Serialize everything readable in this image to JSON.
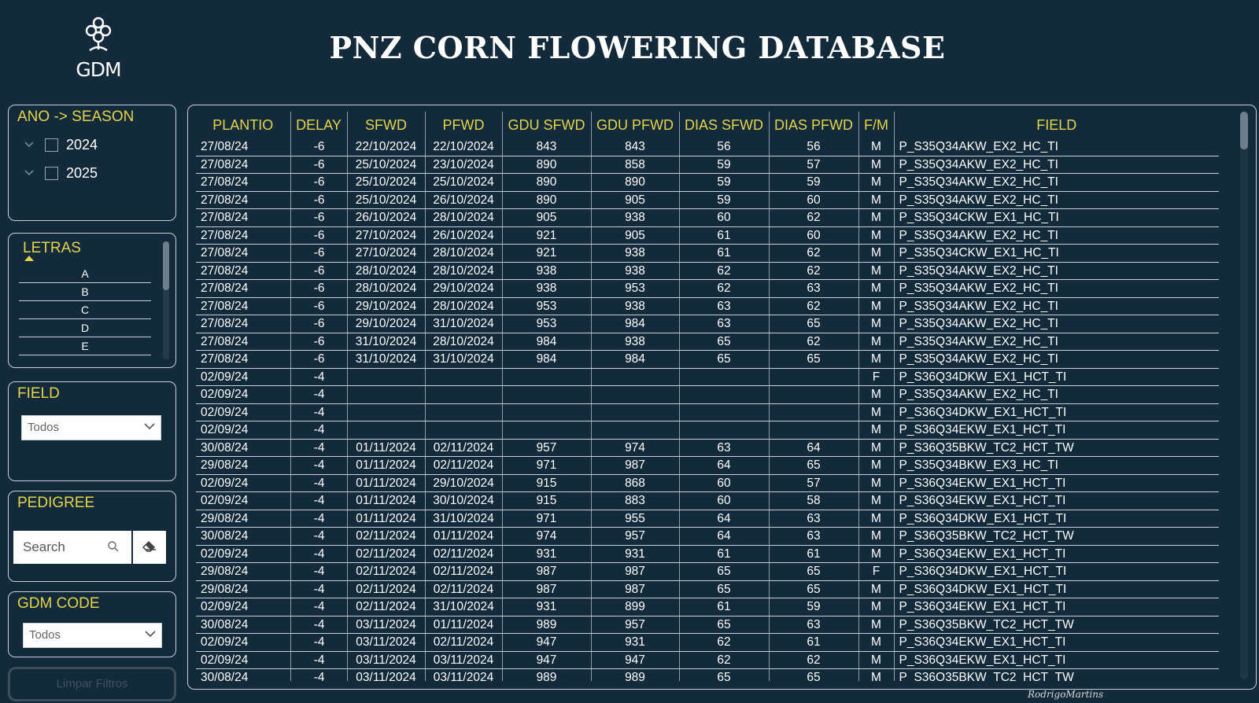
{
  "header": {
    "title": "PNZ CORN FLOWERING DATABASE",
    "logo_text": "GDM"
  },
  "season_filter": {
    "title": "ANO -> SEASON",
    "items": [
      {
        "label": "2024",
        "checked": false
      },
      {
        "label": "2025",
        "checked": false
      }
    ]
  },
  "letras_filter": {
    "title": "LETRAS",
    "items": [
      "A",
      "B",
      "C",
      "D",
      "E"
    ]
  },
  "field_filter": {
    "title": "FIELD",
    "selected": "Todos"
  },
  "pedigree_filter": {
    "title": "PEDIGREE",
    "placeholder": "Search"
  },
  "gdm_code_filter": {
    "title": "GDM CODE",
    "selected": "Todos"
  },
  "clear_button": {
    "label": "Limpar Filtros"
  },
  "table": {
    "columns": [
      "PLANTIO",
      "DELAY",
      "SFWD",
      "PFWD",
      "GDU SFWD",
      "GDU PFWD",
      "DIAS SFWD",
      "DIAS PFWD",
      "F/M",
      "FIELD"
    ],
    "rows": [
      [
        "27/08/24",
        "-6",
        "22/10/2024",
        "22/10/2024",
        "843",
        "843",
        "56",
        "56",
        "M",
        "P_S35Q34AKW_EX2_HC_TI"
      ],
      [
        "27/08/24",
        "-6",
        "25/10/2024",
        "23/10/2024",
        "890",
        "858",
        "59",
        "57",
        "M",
        "P_S35Q34AKW_EX2_HC_TI"
      ],
      [
        "27/08/24",
        "-6",
        "25/10/2024",
        "25/10/2024",
        "890",
        "890",
        "59",
        "59",
        "M",
        "P_S35Q34AKW_EX2_HC_TI"
      ],
      [
        "27/08/24",
        "-6",
        "25/10/2024",
        "26/10/2024",
        "890",
        "905",
        "59",
        "60",
        "M",
        "P_S35Q34AKW_EX2_HC_TI"
      ],
      [
        "27/08/24",
        "-6",
        "26/10/2024",
        "28/10/2024",
        "905",
        "938",
        "60",
        "62",
        "M",
        "P_S35Q34CKW_EX1_HC_TI"
      ],
      [
        "27/08/24",
        "-6",
        "27/10/2024",
        "26/10/2024",
        "921",
        "905",
        "61",
        "60",
        "M",
        "P_S35Q34AKW_EX2_HC_TI"
      ],
      [
        "27/08/24",
        "-6",
        "27/10/2024",
        "28/10/2024",
        "921",
        "938",
        "61",
        "62",
        "M",
        "P_S35Q34CKW_EX1_HC_TI"
      ],
      [
        "27/08/24",
        "-6",
        "28/10/2024",
        "28/10/2024",
        "938",
        "938",
        "62",
        "62",
        "M",
        "P_S35Q34AKW_EX2_HC_TI"
      ],
      [
        "27/08/24",
        "-6",
        "28/10/2024",
        "29/10/2024",
        "938",
        "953",
        "62",
        "63",
        "M",
        "P_S35Q34AKW_EX2_HC_TI"
      ],
      [
        "27/08/24",
        "-6",
        "29/10/2024",
        "28/10/2024",
        "953",
        "938",
        "63",
        "62",
        "M",
        "P_S35Q34AKW_EX2_HC_TI"
      ],
      [
        "27/08/24",
        "-6",
        "29/10/2024",
        "31/10/2024",
        "953",
        "984",
        "63",
        "65",
        "M",
        "P_S35Q34AKW_EX2_HC_TI"
      ],
      [
        "27/08/24",
        "-6",
        "31/10/2024",
        "28/10/2024",
        "984",
        "938",
        "65",
        "62",
        "M",
        "P_S35Q34AKW_EX2_HC_TI"
      ],
      [
        "27/08/24",
        "-6",
        "31/10/2024",
        "31/10/2024",
        "984",
        "984",
        "65",
        "65",
        "M",
        "P_S35Q34AKW_EX2_HC_TI"
      ],
      [
        "02/09/24",
        "-4",
        "",
        "",
        "",
        "",
        "",
        "",
        "F",
        "P_S36Q34DKW_EX1_HCT_TI"
      ],
      [
        "02/09/24",
        "-4",
        "",
        "",
        "",
        "",
        "",
        "",
        "M",
        "P_S35Q34AKW_EX2_HC_TI"
      ],
      [
        "02/09/24",
        "-4",
        "",
        "",
        "",
        "",
        "",
        "",
        "M",
        "P_S36Q34DKW_EX1_HCT_TI"
      ],
      [
        "02/09/24",
        "-4",
        "",
        "",
        "",
        "",
        "",
        "",
        "M",
        "P_S36Q34EKW_EX1_HCT_TI"
      ],
      [
        "30/08/24",
        "-4",
        "01/11/2024",
        "02/11/2024",
        "957",
        "974",
        "63",
        "64",
        "M",
        "P_S36Q35BKW_TC2_HCT_TW"
      ],
      [
        "29/08/24",
        "-4",
        "01/11/2024",
        "02/11/2024",
        "971",
        "987",
        "64",
        "65",
        "M",
        "P_S35Q34BKW_EX3_HC_TI"
      ],
      [
        "02/09/24",
        "-4",
        "01/11/2024",
        "29/10/2024",
        "915",
        "868",
        "60",
        "57",
        "M",
        "P_S36Q34EKW_EX1_HCT_TI"
      ],
      [
        "02/09/24",
        "-4",
        "01/11/2024",
        "30/10/2024",
        "915",
        "883",
        "60",
        "58",
        "M",
        "P_S36Q34EKW_EX1_HCT_TI"
      ],
      [
        "29/08/24",
        "-4",
        "01/11/2024",
        "31/10/2024",
        "971",
        "955",
        "64",
        "63",
        "M",
        "P_S36Q34DKW_EX1_HCT_TI"
      ],
      [
        "30/08/24",
        "-4",
        "02/11/2024",
        "01/11/2024",
        "974",
        "957",
        "64",
        "63",
        "M",
        "P_S36Q35BKW_TC2_HCT_TW"
      ],
      [
        "02/09/24",
        "-4",
        "02/11/2024",
        "02/11/2024",
        "931",
        "931",
        "61",
        "61",
        "M",
        "P_S36Q34EKW_EX1_HCT_TI"
      ],
      [
        "29/08/24",
        "-4",
        "02/11/2024",
        "02/11/2024",
        "987",
        "987",
        "65",
        "65",
        "F",
        "P_S36Q34DKW_EX1_HCT_TI"
      ],
      [
        "29/08/24",
        "-4",
        "02/11/2024",
        "02/11/2024",
        "987",
        "987",
        "65",
        "65",
        "M",
        "P_S36Q34DKW_EX1_HCT_TI"
      ],
      [
        "02/09/24",
        "-4",
        "02/11/2024",
        "31/10/2024",
        "931",
        "899",
        "61",
        "59",
        "M",
        "P_S36Q34EKW_EX1_HCT_TI"
      ],
      [
        "30/08/24",
        "-4",
        "03/11/2024",
        "01/11/2024",
        "989",
        "957",
        "65",
        "63",
        "M",
        "P_S36Q35BKW_TC2_HCT_TW"
      ],
      [
        "02/09/24",
        "-4",
        "03/11/2024",
        "02/11/2024",
        "947",
        "931",
        "62",
        "61",
        "M",
        "P_S36Q34EKW_EX1_HCT_TI"
      ],
      [
        "02/09/24",
        "-4",
        "03/11/2024",
        "03/11/2024",
        "947",
        "947",
        "62",
        "62",
        "M",
        "P_S36Q34EKW_EX1_HCT_TI"
      ],
      [
        "30/08/24",
        "-4",
        "03/11/2024",
        "03/11/2024",
        "989",
        "989",
        "65",
        "65",
        "M",
        "P_S36Q35BKW_TC2_HCT_TW"
      ]
    ]
  },
  "signature": "RodrigoMartins",
  "colors": {
    "background": "#132a3b",
    "accent": "#e4d44a",
    "border": "#c8d0d8"
  }
}
